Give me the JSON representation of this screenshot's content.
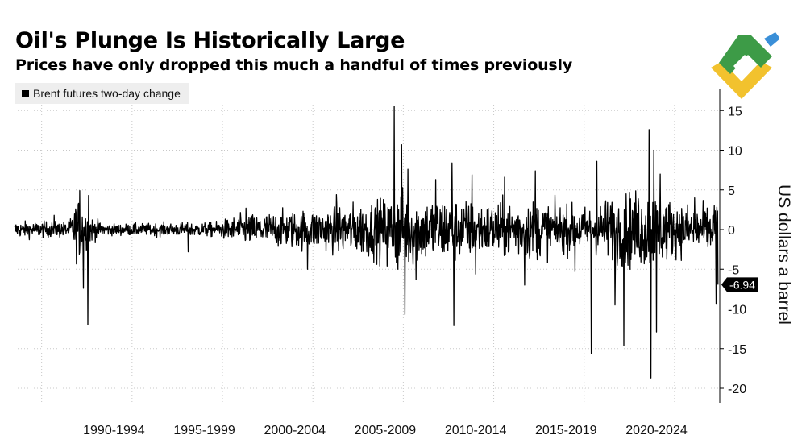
{
  "header": {
    "title": "Oil's Plunge Is Historically Large",
    "subtitle": "Prices have only dropped this much a handful of times previously"
  },
  "legend": {
    "label": "Brent futures two-day change"
  },
  "logo": {
    "icon": "brand-logo-icon",
    "colors": [
      "#3d9b47",
      "#f2c22e",
      "#3a8fd8"
    ]
  },
  "chart_data": {
    "type": "line",
    "title": "Oil's Plunge Is Historically Large",
    "subtitle": "Prices have only dropped this much a handful of times previously",
    "series_name": "Brent futures two-day change",
    "xlabel": "",
    "ylabel": "US dollars a barrel",
    "xlim": [
      1987,
      2026
    ],
    "ylim": [
      -21,
      17
    ],
    "yticks": [
      15,
      10,
      5,
      0,
      -5,
      -10,
      -15,
      -20
    ],
    "x_tick_labels": [
      "1990-1994",
      "1995-1999",
      "2000-2004",
      "2005-2009",
      "2010-2014",
      "2015-2019",
      "2020-2024"
    ],
    "x_tick_label_centers": [
      1992.5,
      1997.5,
      2002.5,
      2007.5,
      2012.5,
      2017.5,
      2022.5
    ],
    "x_gridlines": [
      1988.5,
      1993.5,
      1998.5,
      2003.5,
      2008.5,
      2013.5,
      2018.5,
      2023.5
    ],
    "y_axis_side": "right",
    "grid": true,
    "last_value": -6.94,
    "last_value_label": "-6.94",
    "volatility_envelope": [
      {
        "x": 1987.0,
        "amp": 1.0
      },
      {
        "x": 1990.0,
        "amp": 1.0
      },
      {
        "x": 1990.5,
        "amp": 4.0
      },
      {
        "x": 1991.3,
        "amp": 1.5
      },
      {
        "x": 1992.0,
        "amp": 0.7
      },
      {
        "x": 1998.0,
        "amp": 0.9
      },
      {
        "x": 1999.5,
        "amp": 1.8
      },
      {
        "x": 2002.0,
        "amp": 2.3
      },
      {
        "x": 2004.0,
        "amp": 2.6
      },
      {
        "x": 2005.0,
        "amp": 3.0
      },
      {
        "x": 2007.0,
        "amp": 3.6
      },
      {
        "x": 2008.6,
        "amp": 5.0
      },
      {
        "x": 2009.5,
        "amp": 4.0
      },
      {
        "x": 2011.0,
        "amp": 4.2
      },
      {
        "x": 2013.0,
        "amp": 3.2
      },
      {
        "x": 2014.5,
        "amp": 3.6
      },
      {
        "x": 2015.5,
        "amp": 3.8
      },
      {
        "x": 2017.0,
        "amp": 3.0
      },
      {
        "x": 2019.0,
        "amp": 2.8
      },
      {
        "x": 2020.2,
        "amp": 4.5
      },
      {
        "x": 2022.3,
        "amp": 5.0
      },
      {
        "x": 2023.5,
        "amp": 3.3
      },
      {
        "x": 2025.6,
        "amp": 3.0
      }
    ],
    "notable_spikes": [
      {
        "x": 1989.2,
        "y": 1.8
      },
      {
        "x": 1990.6,
        "y": 4.9
      },
      {
        "x": 1990.8,
        "y": -7.4
      },
      {
        "x": 1991.05,
        "y": -12.0
      },
      {
        "x": 1991.1,
        "y": 4.3
      },
      {
        "x": 1996.6,
        "y": -2.8
      },
      {
        "x": 1999.8,
        "y": 2.7
      },
      {
        "x": 2003.2,
        "y": -5.0
      },
      {
        "x": 2004.8,
        "y": 4.4
      },
      {
        "x": 2007.6,
        "y": -4.6
      },
      {
        "x": 2008.0,
        "y": 15.5
      },
      {
        "x": 2008.2,
        "y": -5.0
      },
      {
        "x": 2008.4,
        "y": 10.7
      },
      {
        "x": 2008.6,
        "y": -10.7
      },
      {
        "x": 2008.75,
        "y": 7.6
      },
      {
        "x": 2009.2,
        "y": -6.3
      },
      {
        "x": 2010.3,
        "y": 6.3
      },
      {
        "x": 2011.2,
        "y": 8.4
      },
      {
        "x": 2011.3,
        "y": -12.1
      },
      {
        "x": 2012.3,
        "y": 6.9
      },
      {
        "x": 2012.5,
        "y": -5.6
      },
      {
        "x": 2014.1,
        "y": 6.6
      },
      {
        "x": 2015.2,
        "y": -7.0
      },
      {
        "x": 2015.8,
        "y": 7.4
      },
      {
        "x": 2018.0,
        "y": -5.3
      },
      {
        "x": 2018.9,
        "y": -15.6
      },
      {
        "x": 2019.2,
        "y": 8.6
      },
      {
        "x": 2020.2,
        "y": -9.5
      },
      {
        "x": 2020.7,
        "y": -14.6
      },
      {
        "x": 2022.1,
        "y": 12.6
      },
      {
        "x": 2022.2,
        "y": -18.7
      },
      {
        "x": 2022.35,
        "y": 10.0
      },
      {
        "x": 2022.5,
        "y": -12.9
      },
      {
        "x": 2022.7,
        "y": 7.0
      },
      {
        "x": 2024.6,
        "y": 4.0
      },
      {
        "x": 2025.7,
        "y": 3.0
      },
      {
        "x": 2025.8,
        "y": -9.4
      },
      {
        "x": 2025.9,
        "y": -6.94
      }
    ]
  }
}
